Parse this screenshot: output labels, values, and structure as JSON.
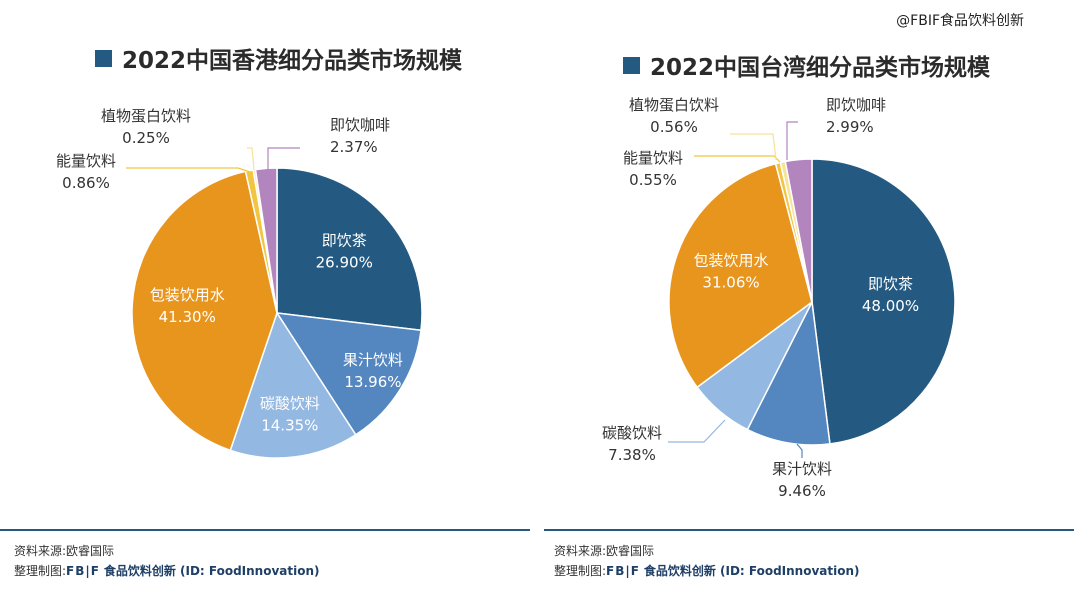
{
  "watermark": "@FBIF食品饮料创新",
  "colors": {
    "tea": "#245a82",
    "juice": "#5486c0",
    "soda": "#93b8e1",
    "water": "#e8951e",
    "energy": "#f2c540",
    "plant": "#f6e29a",
    "coffee": "#b385bf",
    "title_square": "#245a82",
    "footer_line": "#245a82"
  },
  "footer": {
    "source": "资料来源:欧睿国际",
    "made_prefix": "整理制图:",
    "logo": "FB|F",
    "brand": "食品饮料创新 (ID: FoodInnovation)"
  },
  "chart_data": [
    {
      "type": "pie",
      "title": "2022中国香港细分品类市场规模",
      "slices": [
        {
          "key": "tea",
          "label": "即饮茶",
          "value": 26.9,
          "display": "26.90%"
        },
        {
          "key": "juice",
          "label": "果汁饮料",
          "value": 13.96,
          "display": "13.96%"
        },
        {
          "key": "soda",
          "label": "碳酸饮料",
          "value": 14.35,
          "display": "14.35%"
        },
        {
          "key": "water",
          "label": "包装饮用水",
          "value": 41.3,
          "display": "41.30%"
        },
        {
          "key": "energy",
          "label": "能量饮料",
          "value": 0.86,
          "display": "0.86%"
        },
        {
          "key": "plant",
          "label": "植物蛋白饮料",
          "value": 0.25,
          "display": "0.25%"
        },
        {
          "key": "coffee",
          "label": "即饮咖啡",
          "value": 2.37,
          "display": "2.37%"
        }
      ]
    },
    {
      "type": "pie",
      "title": "2022中国台湾细分品类市场规模",
      "slices": [
        {
          "key": "tea",
          "label": "即饮茶",
          "value": 48.0,
          "display": "48.00%"
        },
        {
          "key": "juice",
          "label": "果汁饮料",
          "value": 9.46,
          "display": "9.46%"
        },
        {
          "key": "soda",
          "label": "碳酸饮料",
          "value": 7.38,
          "display": "7.38%"
        },
        {
          "key": "water",
          "label": "包装饮用水",
          "value": 31.06,
          "display": "31.06%"
        },
        {
          "key": "energy",
          "label": "能量饮料",
          "value": 0.55,
          "display": "0.55%"
        },
        {
          "key": "plant",
          "label": "植物蛋白饮料",
          "value": 0.56,
          "display": "0.56%"
        },
        {
          "key": "coffee",
          "label": "即饮咖啡",
          "value": 2.99,
          "display": "2.99%"
        }
      ]
    }
  ]
}
